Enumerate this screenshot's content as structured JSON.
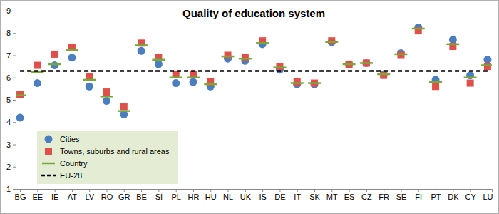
{
  "chart_data": {
    "type": "scatter",
    "title": "Quality of education system",
    "categories": [
      "BG",
      "EE",
      "IE",
      "AT",
      "LV",
      "RO",
      "GR",
      "BE",
      "SI",
      "PL",
      "HR",
      "HU",
      "NL",
      "UK",
      "IS",
      "DE",
      "IT",
      "SK",
      "MT",
      "ES",
      "CZ",
      "FR",
      "SE",
      "FI",
      "PT",
      "DK",
      "CY",
      "LU"
    ],
    "series": [
      {
        "name": "Cities",
        "type": "scatter",
        "marker": "circle",
        "color": "#4a7ebf",
        "values": [
          4.2,
          5.75,
          6.55,
          6.9,
          5.6,
          4.95,
          4.35,
          7.2,
          6.6,
          5.75,
          5.8,
          5.6,
          6.85,
          6.75,
          7.5,
          6.35,
          5.7,
          5.7,
          7.6,
          6.6,
          6.65,
          6.15,
          7.1,
          8.25,
          5.9,
          7.7,
          6.1,
          6.8
        ]
      },
      {
        "name": "Towns, suburbs and rural areas",
        "type": "scatter",
        "marker": "square",
        "color": "#e0504a",
        "values": [
          5.25,
          6.55,
          7.05,
          7.35,
          6.05,
          5.35,
          4.7,
          7.55,
          6.9,
          6.15,
          6.15,
          5.8,
          7.0,
          6.9,
          7.65,
          6.5,
          5.8,
          5.75,
          7.65,
          6.6,
          6.65,
          6.1,
          7.0,
          8.1,
          5.6,
          7.4,
          5.75,
          6.5
        ]
      },
      {
        "name": "Country",
        "type": "scatter",
        "marker": "dash",
        "color": "#77a83a",
        "values": [
          5.2,
          6.25,
          6.6,
          7.25,
          5.9,
          5.15,
          4.5,
          7.45,
          6.8,
          6.0,
          6.0,
          5.7,
          6.95,
          6.85,
          7.55,
          6.45,
          5.75,
          5.75,
          7.6,
          6.6,
          6.65,
          6.15,
          7.05,
          8.2,
          5.8,
          7.5,
          6.0,
          6.55
        ]
      },
      {
        "name": "EU-28",
        "type": "line",
        "line_style": "dashed",
        "color": "#000000",
        "values": [
          6.3,
          6.3,
          6.3,
          6.3,
          6.3,
          6.3,
          6.3,
          6.3,
          6.3,
          6.3,
          6.3,
          6.3,
          6.3,
          6.3,
          6.3,
          6.3,
          6.3,
          6.3,
          6.3,
          6.3,
          6.3,
          6.3,
          6.3,
          6.3,
          6.3,
          6.3,
          6.3,
          6.3
        ]
      }
    ],
    "ylim": [
      1,
      9
    ],
    "yticks": [
      1,
      2,
      3,
      4,
      5,
      6,
      7,
      8,
      9
    ],
    "grid": false,
    "legend": "lower left"
  }
}
